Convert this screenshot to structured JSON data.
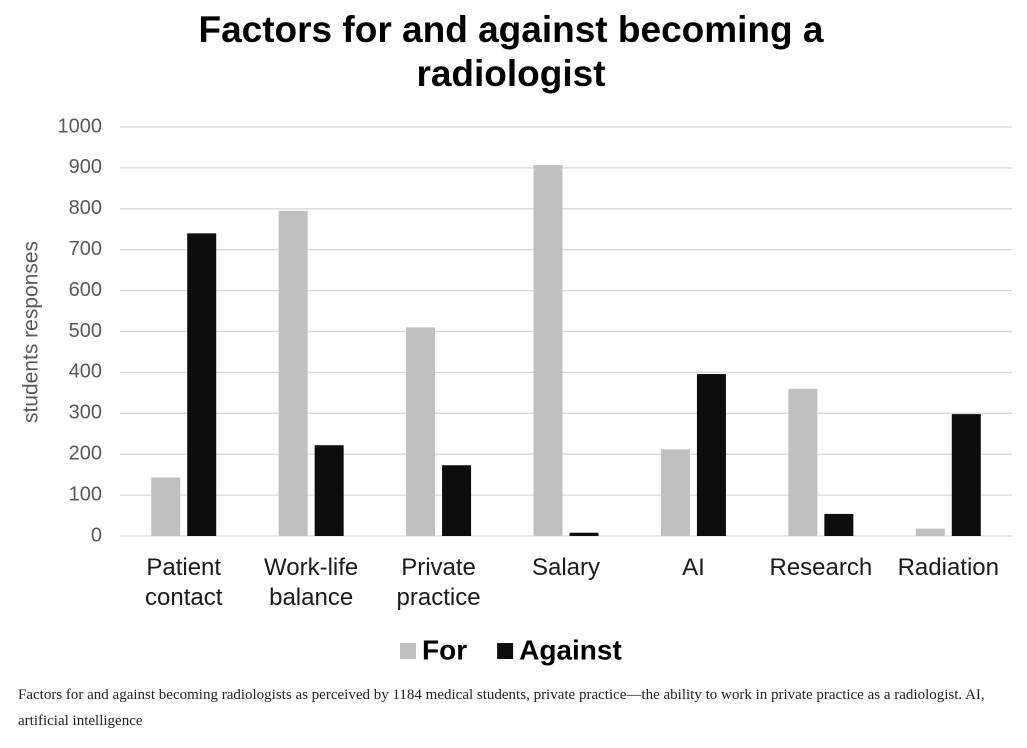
{
  "chart_data": {
    "type": "bar",
    "title": "Factors for and against becoming a radiologist",
    "y_label": "students responses",
    "categories": [
      "Patient contact",
      "Work-life balance",
      "Private practice",
      "Salary",
      "AI",
      "Research",
      "Radiation"
    ],
    "series": [
      {
        "name": "For",
        "color": "#c0c0c0",
        "values": [
          143,
          795,
          510,
          907,
          212,
          360,
          18
        ]
      },
      {
        "name": "Against",
        "color": "#0d0d0d",
        "values": [
          740,
          222,
          173,
          8,
          396,
          54,
          298
        ]
      }
    ],
    "ylim": [
      0,
      1000
    ],
    "yticks": [
      0,
      100,
      200,
      300,
      400,
      500,
      600,
      700,
      800,
      900,
      1000
    ],
    "grid": true,
    "caption": "Factors for and against becoming radiologists as perceived by 1184 medical students, private practice—the ability to work in private practice as a radiologist. AI, artificial intelligence"
  }
}
